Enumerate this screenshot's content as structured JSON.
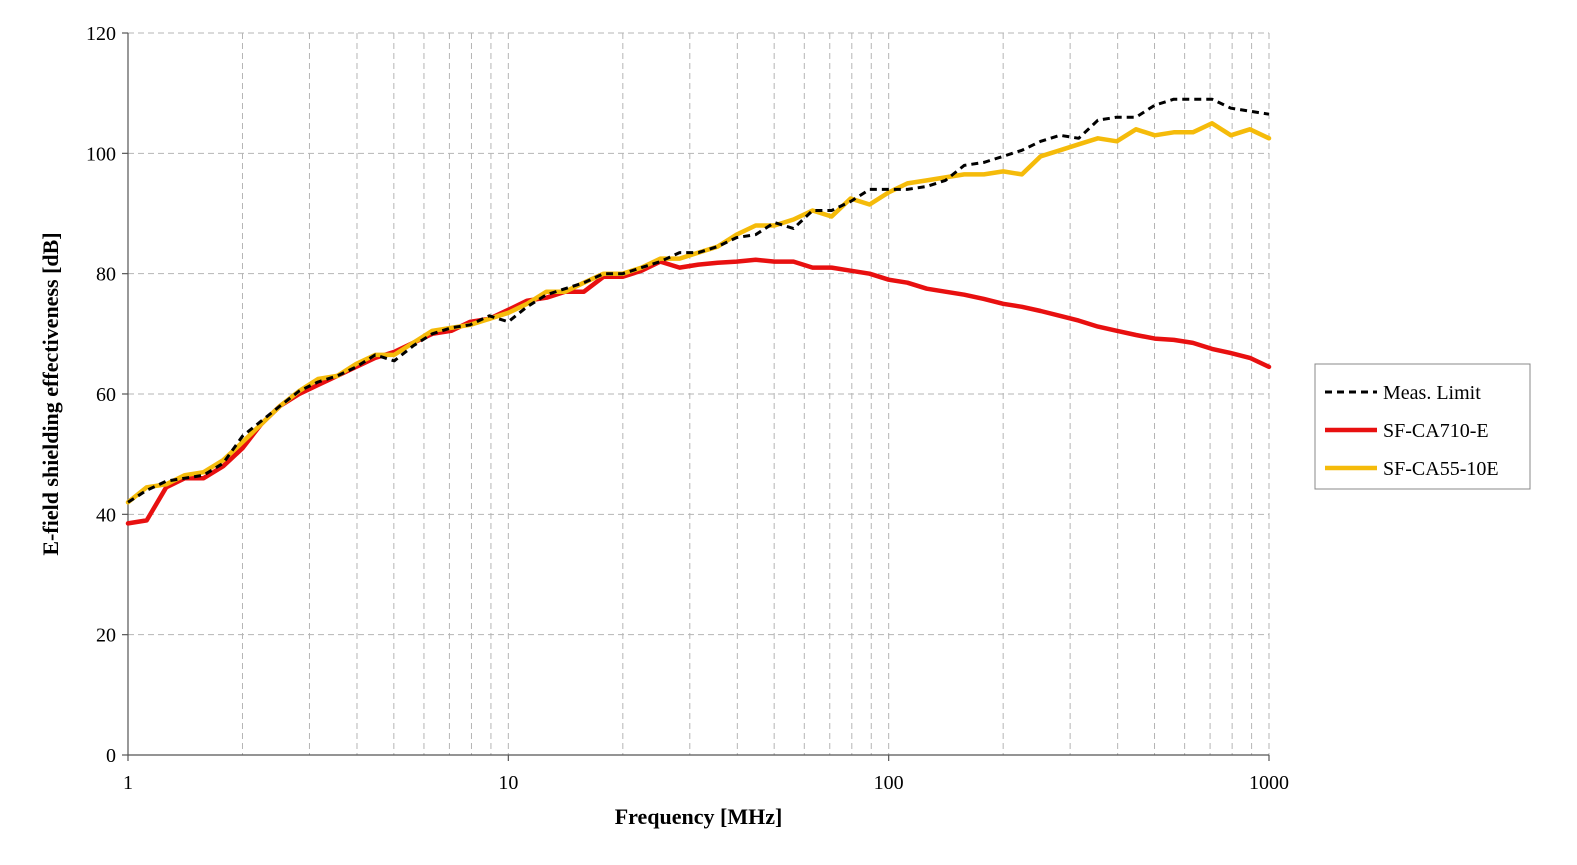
{
  "chart_data": {
    "type": "line",
    "xlabel": "Frequency [MHz]",
    "ylabel": "E-field shielding effectiveness [dB]",
    "xscale": "log",
    "xlim": [
      1,
      1000
    ],
    "ylim": [
      0,
      120
    ],
    "xticks": [
      1,
      10,
      100,
      1000
    ],
    "xtick_labels": [
      "1",
      "10",
      "100",
      "1000"
    ],
    "yticks": [
      0,
      20,
      40,
      60,
      80,
      100,
      120
    ],
    "ytick_labels": [
      "0",
      "20",
      "40",
      "60",
      "80",
      "100",
      "120"
    ],
    "grid": true,
    "legend_position": "right",
    "series": [
      {
        "name": "Meas. Limit",
        "color": "#000000",
        "style": "dashed",
        "x": [
          1,
          1.12,
          1.26,
          1.41,
          1.58,
          1.78,
          2,
          2.24,
          2.51,
          2.82,
          3.16,
          3.55,
          3.98,
          4.47,
          5.01,
          5.62,
          6.31,
          7.08,
          7.94,
          8.91,
          10,
          11.2,
          12.6,
          14.1,
          15.8,
          17.8,
          20,
          22.4,
          25.1,
          28.2,
          31.6,
          35.5,
          39.8,
          44.7,
          50.1,
          56.2,
          63.1,
          70.8,
          79.4,
          89.1,
          100,
          112,
          126,
          141,
          158,
          178,
          200,
          224,
          251,
          282,
          316,
          355,
          398,
          447,
          501,
          562,
          631,
          708,
          794,
          891,
          1000
        ],
        "y": [
          42,
          44,
          45.5,
          46,
          46.5,
          48.5,
          53,
          55.5,
          58,
          60.5,
          62,
          63,
          64.5,
          66.5,
          65.5,
          68,
          70,
          71,
          71.5,
          73,
          72,
          74.5,
          76.5,
          77.5,
          78.5,
          80,
          80,
          81,
          82,
          83.5,
          83.5,
          84.5,
          86,
          86.5,
          88.5,
          87.5,
          90.5,
          90.5,
          92,
          94,
          94,
          94,
          94.5,
          95.5,
          98,
          98.5,
          99.5,
          100.5,
          102,
          103,
          102.5,
          105.5,
          106,
          106,
          108,
          109,
          109,
          109,
          107.5,
          107,
          106.5
        ]
      },
      {
        "name": "SF-CA710-E",
        "color": "#e81010",
        "style": "solid",
        "x": [
          1,
          1.12,
          1.26,
          1.41,
          1.58,
          1.78,
          2,
          2.24,
          2.51,
          2.82,
          3.16,
          3.55,
          3.98,
          4.47,
          5.01,
          5.62,
          6.31,
          7.08,
          7.94,
          8.91,
          10,
          11.2,
          12.6,
          14.1,
          15.8,
          17.8,
          20,
          22.4,
          25.1,
          28.2,
          31.6,
          35.5,
          39.8,
          44.7,
          50.1,
          56.2,
          63.1,
          70.8,
          79.4,
          89.1,
          100,
          112,
          126,
          141,
          158,
          178,
          200,
          224,
          251,
          282,
          316,
          355,
          398,
          447,
          501,
          562,
          631,
          708,
          794,
          891,
          1000
        ],
        "y": [
          38.5,
          39,
          44.5,
          46,
          46,
          48,
          51,
          55,
          58,
          60,
          61.5,
          63,
          64.5,
          66,
          67,
          68.5,
          70,
          70.5,
          72,
          72.5,
          74,
          75.5,
          76,
          77,
          77,
          79.5,
          79.5,
          80.5,
          82,
          81,
          81.5,
          81.8,
          82,
          82.3,
          82,
          82,
          81,
          81,
          80.5,
          80,
          79,
          78.5,
          77.5,
          77,
          76.5,
          75.8,
          75,
          74.5,
          73.8,
          73,
          72.2,
          71.2,
          70.5,
          69.8,
          69.2,
          69,
          68.5,
          67.5,
          66.8,
          66,
          64.5
        ]
      },
      {
        "name": "SF-CA55-10E",
        "color": "#f5bb0a",
        "style": "solid",
        "x": [
          1,
          1.12,
          1.26,
          1.41,
          1.58,
          1.78,
          2,
          2.24,
          2.51,
          2.82,
          3.16,
          3.55,
          3.98,
          4.47,
          5.01,
          5.62,
          6.31,
          7.08,
          7.94,
          8.91,
          10,
          11.2,
          12.6,
          14.1,
          15.8,
          17.8,
          20,
          22.4,
          25.1,
          28.2,
          31.6,
          35.5,
          39.8,
          44.7,
          50.1,
          56.2,
          63.1,
          70.8,
          79.4,
          89.1,
          100,
          112,
          126,
          141,
          158,
          178,
          200,
          224,
          251,
          282,
          316,
          355,
          398,
          447,
          501,
          562,
          631,
          708,
          794,
          891,
          1000
        ],
        "y": [
          42,
          44.5,
          45,
          46.5,
          47,
          49,
          52,
          55,
          58,
          60.5,
          62.5,
          63,
          65,
          66.5,
          66.5,
          68.5,
          70.5,
          71,
          71.5,
          72.5,
          73.5,
          75,
          77,
          77,
          78.5,
          80,
          80,
          81,
          82.5,
          82.5,
          83.5,
          84.5,
          86.5,
          88,
          88,
          89,
          90.5,
          89.5,
          92.5,
          91.5,
          93.5,
          95,
          95.5,
          96,
          96.5,
          96.5,
          97,
          96.5,
          99.5,
          100.5,
          101.5,
          102.5,
          102,
          104,
          103,
          103.5,
          103.5,
          105,
          103,
          104,
          102.5
        ]
      }
    ]
  }
}
